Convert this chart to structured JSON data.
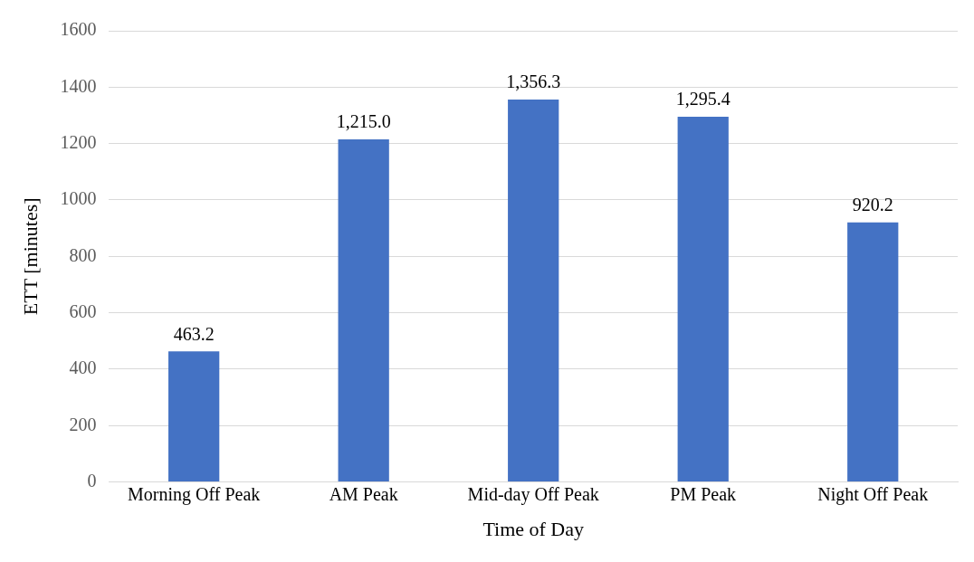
{
  "chart_data": {
    "type": "bar",
    "xlabel": "Time of Day",
    "ylabel": "ETT [minutes]",
    "categories": [
      "Morning Off Peak",
      "AM Peak",
      "Mid-day Off Peak",
      "PM Peak",
      "Night Off Peak"
    ],
    "values": [
      463.2,
      1215.0,
      1356.3,
      1295.4,
      920.2
    ],
    "value_labels": [
      "463.2",
      "1,215.0",
      "1,356.3",
      "1,295.4",
      "920.2"
    ],
    "color": "#4472c4",
    "ylim": [
      0,
      1600
    ],
    "yticks": [
      0,
      200,
      400,
      600,
      800,
      1000,
      1200,
      1400,
      1600
    ],
    "grid": "y"
  }
}
